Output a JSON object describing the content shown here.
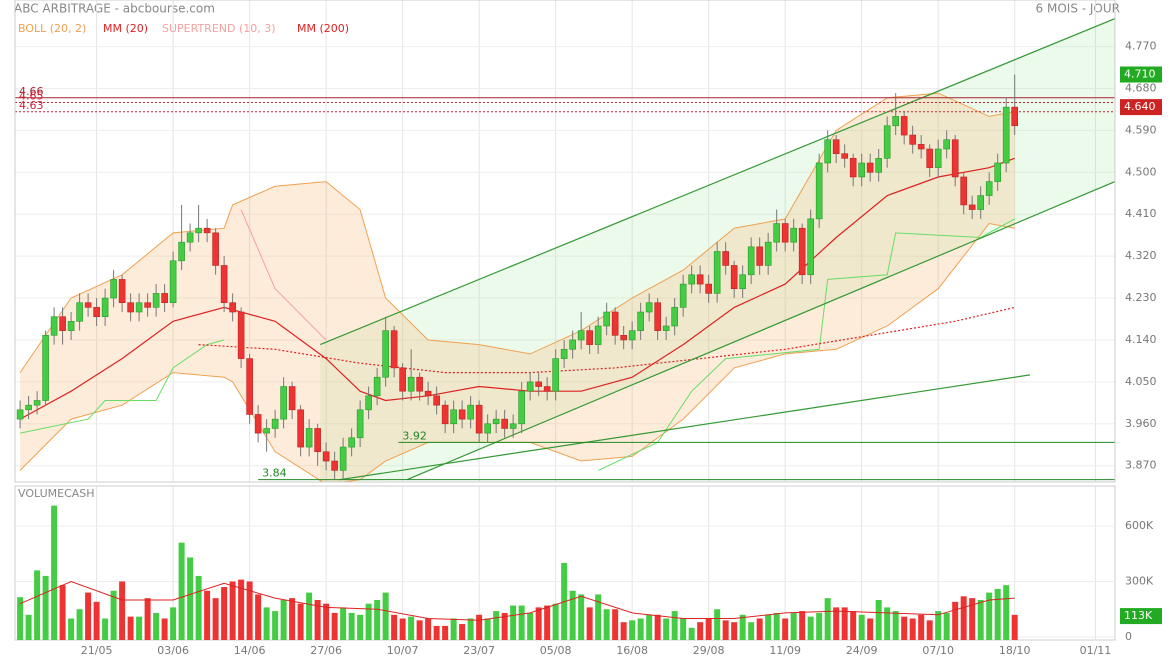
{
  "header": {
    "title": "ABC ARBITRAGE - abcbourse.com",
    "period": "6 MOIS - JOUR"
  },
  "chart_data": {
    "type": "candlestick",
    "xlim": [
      -0.6,
      128.8
    ],
    "xticks": [
      {
        "value": 9,
        "label": "21/05"
      },
      {
        "value": 18,
        "label": "03/06"
      },
      {
        "value": 27,
        "label": "14/06"
      },
      {
        "value": 36,
        "label": "27/06"
      },
      {
        "value": 45,
        "label": "10/07"
      },
      {
        "value": 54,
        "label": "23/07"
      },
      {
        "value": 63,
        "label": "05/08"
      },
      {
        "value": 72,
        "label": "16/08"
      },
      {
        "value": 81,
        "label": "29/08"
      },
      {
        "value": 90,
        "label": "11/09"
      },
      {
        "value": 99,
        "label": "24/09"
      },
      {
        "value": 108,
        "label": "07/10"
      },
      {
        "value": 117,
        "label": "18/10"
      },
      {
        "value": 126.5,
        "label": "01/11"
      }
    ],
    "ylim": [
      3.835,
      4.87
    ],
    "yticks": [
      {
        "value": 4.77,
        "label": "4.770"
      },
      {
        "value": 4.68,
        "label": "4.680"
      },
      {
        "value": 4.59,
        "label": "4.590"
      },
      {
        "value": 4.5,
        "label": "4.500"
      },
      {
        "value": 4.41,
        "label": "4.410"
      },
      {
        "value": 4.32,
        "label": "4.320"
      },
      {
        "value": 4.23,
        "label": "4.230"
      },
      {
        "value": 4.14,
        "label": "4.140"
      },
      {
        "value": 4.05,
        "label": "4.050"
      },
      {
        "value": 3.96,
        "label": "3.960"
      },
      {
        "value": 3.87,
        "label": "3.870"
      }
    ],
    "grid": true,
    "up_color": "#44cc44",
    "down_color": "#ee3333",
    "candles": {
      "open": [
        3.97,
        3.99,
        4.0,
        4.01,
        4.15,
        4.19,
        4.16,
        4.18,
        4.22,
        4.21,
        4.19,
        4.23,
        4.27,
        4.22,
        4.2,
        4.22,
        4.21,
        4.24,
        4.22,
        4.31,
        4.35,
        4.37,
        4.38,
        4.37,
        4.3,
        4.22,
        4.2,
        4.1,
        3.98,
        3.94,
        3.95,
        3.97,
        4.04,
        3.99,
        3.91,
        3.95,
        3.9,
        3.88,
        3.86,
        3.91,
        3.93,
        3.99,
        4.02,
        4.06,
        4.16,
        4.08,
        4.03,
        4.06,
        4.03,
        4.02,
        4.0,
        3.96,
        3.99,
        3.97,
        4.0,
        3.94,
        3.96,
        3.97,
        3.95,
        3.96,
        4.03,
        4.05,
        4.04,
        4.03,
        4.1,
        4.12,
        4.14,
        4.16,
        4.13,
        4.17,
        4.2,
        4.15,
        4.14,
        4.16,
        4.2,
        4.22,
        4.16,
        4.17,
        4.21,
        4.26,
        4.28,
        4.26,
        4.24,
        4.33,
        4.3,
        4.25,
        4.28,
        4.34,
        4.3,
        4.35,
        4.39,
        4.35,
        4.38,
        4.28,
        4.4,
        4.52,
        4.57,
        4.54,
        4.53,
        4.49,
        4.52,
        4.5,
        4.53,
        4.6,
        4.62,
        4.58,
        4.56,
        4.55,
        4.51,
        4.55,
        4.57,
        4.49,
        4.43,
        4.42,
        4.45,
        4.48,
        4.52,
        4.64
      ],
      "high": [
        4.01,
        4.02,
        4.03,
        4.16,
        4.21,
        4.21,
        4.2,
        4.24,
        4.24,
        4.23,
        4.25,
        4.29,
        4.28,
        4.24,
        4.24,
        4.24,
        4.26,
        4.26,
        4.33,
        4.43,
        4.39,
        4.43,
        4.4,
        4.38,
        4.32,
        4.24,
        4.21,
        4.11,
        4.0,
        3.97,
        3.99,
        4.06,
        4.05,
        4.0,
        3.97,
        3.96,
        3.92,
        3.9,
        3.93,
        3.95,
        4.01,
        4.04,
        4.08,
        4.19,
        4.17,
        4.09,
        4.12,
        4.07,
        4.05,
        4.04,
        4.01,
        4.01,
        4.01,
        4.02,
        4.01,
        3.98,
        3.99,
        3.99,
        3.98,
        4.05,
        4.07,
        4.07,
        4.06,
        4.12,
        4.14,
        4.16,
        4.2,
        4.17,
        4.19,
        4.22,
        4.21,
        4.17,
        4.18,
        4.22,
        4.24,
        4.23,
        4.19,
        4.23,
        4.28,
        4.3,
        4.3,
        4.28,
        4.35,
        4.35,
        4.31,
        4.3,
        4.36,
        4.36,
        4.37,
        4.42,
        4.4,
        4.4,
        4.39,
        4.42,
        4.54,
        4.59,
        4.58,
        4.56,
        4.54,
        4.54,
        4.54,
        4.55,
        4.62,
        4.67,
        4.63,
        4.6,
        4.58,
        4.56,
        4.57,
        4.59,
        4.58,
        4.5,
        4.45,
        4.47,
        4.5,
        4.54,
        4.66,
        4.71
      ],
      "low": [
        3.95,
        3.97,
        3.98,
        4.0,
        4.13,
        4.13,
        4.14,
        4.16,
        4.19,
        4.17,
        4.17,
        4.21,
        4.2,
        4.18,
        4.18,
        4.19,
        4.19,
        4.2,
        4.21,
        4.29,
        4.33,
        4.35,
        4.35,
        4.28,
        4.2,
        4.18,
        4.08,
        3.96,
        3.92,
        3.9,
        3.93,
        3.95,
        3.97,
        3.89,
        3.89,
        3.87,
        3.86,
        3.84,
        3.84,
        3.89,
        3.91,
        3.97,
        4.0,
        4.04,
        4.06,
        4.01,
        4.01,
        4.01,
        4.0,
        3.98,
        3.94,
        3.94,
        3.95,
        3.95,
        3.92,
        3.92,
        3.94,
        3.93,
        3.93,
        3.94,
        4.01,
        4.02,
        4.01,
        4.01,
        4.08,
        4.1,
        4.12,
        4.11,
        4.11,
        4.15,
        4.13,
        4.12,
        4.12,
        4.14,
        4.18,
        4.14,
        4.14,
        4.15,
        4.19,
        4.24,
        4.24,
        4.22,
        4.22,
        4.28,
        4.23,
        4.23,
        4.26,
        4.28,
        4.28,
        4.33,
        4.33,
        4.33,
        4.26,
        4.26,
        4.38,
        4.5,
        4.52,
        4.51,
        4.47,
        4.47,
        4.48,
        4.48,
        4.51,
        4.58,
        4.56,
        4.54,
        4.53,
        4.49,
        4.49,
        4.53,
        4.47,
        4.41,
        4.4,
        4.4,
        4.43,
        4.46,
        4.5,
        4.58
      ],
      "close": [
        3.99,
        4.0,
        4.01,
        4.15,
        4.19,
        4.16,
        4.18,
        4.22,
        4.21,
        4.19,
        4.23,
        4.27,
        4.22,
        4.2,
        4.22,
        4.21,
        4.24,
        4.22,
        4.31,
        4.35,
        4.37,
        4.38,
        4.37,
        4.3,
        4.22,
        4.2,
        4.1,
        3.98,
        3.94,
        3.95,
        3.97,
        4.04,
        3.99,
        3.91,
        3.95,
        3.9,
        3.88,
        3.86,
        3.91,
        3.93,
        3.99,
        4.02,
        4.06,
        4.16,
        4.08,
        4.03,
        4.06,
        4.03,
        4.02,
        4.0,
        3.96,
        3.99,
        3.97,
        4.0,
        3.94,
        3.96,
        3.97,
        3.95,
        3.96,
        4.03,
        4.05,
        4.04,
        4.03,
        4.1,
        4.12,
        4.14,
        4.16,
        4.13,
        4.17,
        4.2,
        4.15,
        4.14,
        4.16,
        4.2,
        4.22,
        4.16,
        4.17,
        4.21,
        4.26,
        4.28,
        4.26,
        4.24,
        4.33,
        4.3,
        4.25,
        4.28,
        4.34,
        4.3,
        4.35,
        4.39,
        4.35,
        4.38,
        4.28,
        4.4,
        4.52,
        4.57,
        4.54,
        4.53,
        4.49,
        4.52,
        4.5,
        4.53,
        4.6,
        4.62,
        4.58,
        4.56,
        4.55,
        4.51,
        4.55,
        4.57,
        4.49,
        4.43,
        4.42,
        4.45,
        4.48,
        4.52,
        4.64,
        4.6
      ]
    },
    "bollinger": {
      "name": "BOLL (20, 2)",
      "color": "#f0a050",
      "x": [
        0,
        6,
        12,
        18,
        24,
        25,
        30,
        36,
        40,
        43,
        48,
        54,
        60,
        66,
        72,
        78,
        84,
        90,
        96,
        102,
        108,
        114,
        117
      ],
      "upper": [
        4.07,
        4.23,
        4.28,
        4.37,
        4.38,
        4.43,
        4.47,
        4.48,
        4.42,
        4.23,
        4.14,
        4.13,
        4.11,
        4.16,
        4.23,
        4.29,
        4.38,
        4.4,
        4.59,
        4.66,
        4.67,
        4.62,
        4.63
      ],
      "lower": [
        3.86,
        3.97,
        4.0,
        4.07,
        4.06,
        4.05,
        3.9,
        3.83,
        3.84,
        3.88,
        3.92,
        3.92,
        3.92,
        3.88,
        3.89,
        3.97,
        4.08,
        4.11,
        4.12,
        4.17,
        4.25,
        4.39,
        4.38
      ]
    },
    "mm20": {
      "name": "MM (20)",
      "color": "#dd2222",
      "x": [
        0,
        6,
        12,
        18,
        24,
        30,
        36,
        40,
        43,
        48,
        54,
        60,
        66,
        72,
        78,
        84,
        90,
        96,
        102,
        108,
        114,
        117
      ],
      "values": [
        3.97,
        4.03,
        4.1,
        4.18,
        4.21,
        4.18,
        4.1,
        4.03,
        4.01,
        4.02,
        4.04,
        4.03,
        4.03,
        4.06,
        4.13,
        4.21,
        4.26,
        4.36,
        4.45,
        4.49,
        4.51,
        4.53
      ]
    },
    "supertrend": {
      "name": "SUPERTREND (10, 3)",
      "color": "#f4a0a0",
      "bull_color": "#66dd66",
      "x": [
        0,
        8,
        10,
        16,
        18,
        22,
        24,
        26,
        30,
        36,
        68,
        75,
        79,
        83,
        94,
        95,
        102,
        103,
        113,
        117
      ],
      "bull": [
        3.94,
        3.97,
        4.01,
        4.01,
        4.08,
        4.13,
        4.14,
        null,
        null,
        null,
        3.86,
        3.92,
        4.03,
        4.1,
        4.12,
        4.27,
        4.28,
        4.37,
        4.36,
        4.4
      ],
      "bear": [
        null,
        null,
        null,
        null,
        null,
        null,
        null,
        4.42,
        4.25,
        4.14,
        null,
        null,
        null,
        null,
        null,
        null,
        null,
        null,
        null,
        null
      ]
    },
    "mm200": {
      "name": "MM (200)",
      "color": "#dd2222",
      "x": [
        21,
        30,
        40,
        50,
        60,
        70,
        80,
        90,
        100,
        110,
        117
      ],
      "values": [
        4.13,
        4.12,
        4.09,
        4.07,
        4.07,
        4.08,
        4.1,
        4.12,
        4.15,
        4.18,
        4.21
      ]
    },
    "trend_lines": [
      {
        "x": [
          35.3,
          128.8
        ],
        "values": [
          4.13,
          4.83
        ]
      },
      {
        "x": [
          45.5,
          128.8
        ],
        "values": [
          3.84,
          4.48
        ]
      },
      {
        "x": [
          37.6,
          118.8
        ],
        "values": [
          3.84,
          4.065
        ]
      }
    ],
    "channel_fill": "rgba(150,230,150,0.18)",
    "levels": [
      {
        "value": 3.92,
        "x": [
          44.5,
          128.8
        ],
        "color": "#228822",
        "dashed": false
      },
      {
        "value": 3.84,
        "x": [
          28,
          128.8
        ],
        "color": "#228822",
        "dashed": false
      },
      {
        "value": 4.66,
        "x": [
          -0.6,
          128.8
        ],
        "color": "#aa2233",
        "dashed": false
      },
      {
        "value": 4.65,
        "x": [
          -0.6,
          128.8
        ],
        "color": "#cc2233",
        "dashed": true
      },
      {
        "value": 4.63,
        "x": [
          -0.6,
          128.8
        ],
        "color": "#cc2233",
        "dashed": true
      }
    ],
    "price_markers": [
      {
        "value": 4.71,
        "label": "4.710",
        "color": "#22aa22"
      },
      {
        "value": 4.64,
        "label": "4.640",
        "color": "#cc2222"
      }
    ],
    "volume": {
      "title": "VOLUMECASH",
      "ylim": [
        0,
        816000
      ],
      "yticks": [
        {
          "value": 600000,
          "label": "600K"
        },
        {
          "value": 300000,
          "label": "300K"
        },
        0
      ],
      "values": [
        215000,
        120000,
        360000,
        330000,
        710000,
        280000,
        100000,
        150000,
        240000,
        190000,
        100000,
        250000,
        300000,
        110000,
        110000,
        210000,
        130000,
        100000,
        160000,
        510000,
        430000,
        330000,
        250000,
        210000,
        270000,
        300000,
        310000,
        300000,
        230000,
        160000,
        140000,
        200000,
        210000,
        180000,
        240000,
        200000,
        180000,
        130000,
        160000,
        130000,
        120000,
        180000,
        200000,
        240000,
        120000,
        100000,
        110000,
        90000,
        100000,
        60000,
        60000,
        100000,
        70000,
        100000,
        120000,
        100000,
        140000,
        130000,
        170000,
        170000,
        130000,
        160000,
        170000,
        180000,
        400000,
        250000,
        230000,
        160000,
        230000,
        150000,
        150000,
        80000,
        90000,
        100000,
        120000,
        120000,
        100000,
        140000,
        100000,
        50000,
        80000,
        100000,
        150000,
        90000,
        80000,
        120000,
        80000,
        100000,
        120000,
        130000,
        100000,
        130000,
        140000,
        110000,
        130000,
        210000,
        160000,
        160000,
        140000,
        120000,
        100000,
        200000,
        160000,
        140000,
        110000,
        100000,
        120000,
        90000,
        140000,
        130000,
        190000,
        220000,
        210000,
        200000,
        240000,
        260000,
        280000,
        120000
      ],
      "ma": {
        "color": "#dd2222",
        "x": [
          0,
          6,
          12,
          18,
          24,
          30,
          36,
          42,
          48,
          54,
          60,
          66,
          72,
          78,
          84,
          90,
          96,
          102,
          108,
          114,
          117
        ],
        "values": [
          180000,
          300000,
          200000,
          200000,
          290000,
          210000,
          160000,
          150000,
          100000,
          90000,
          130000,
          220000,
          130000,
          100000,
          100000,
          130000,
          140000,
          130000,
          120000,
          200000,
          210000
        ]
      },
      "marker": {
        "value": 113000,
        "label": "113K",
        "color": "#22aa22"
      }
    }
  }
}
